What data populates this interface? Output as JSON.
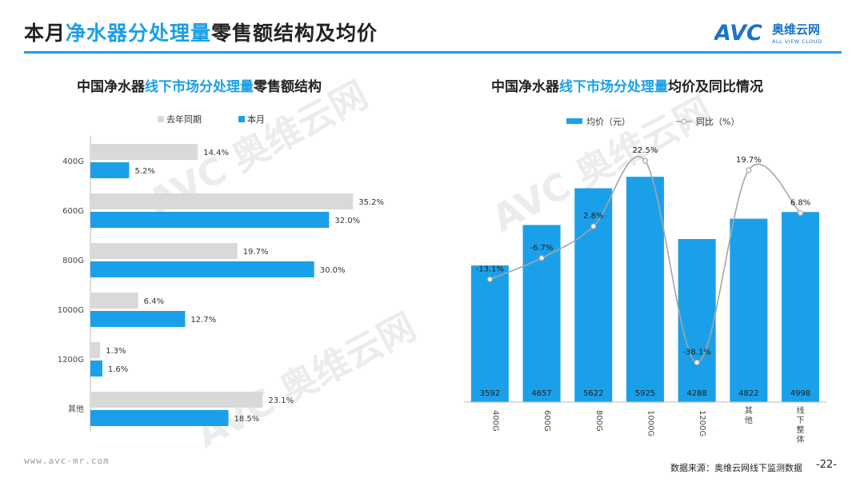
{
  "header": {
    "title_pre": "本月",
    "title_hl": "净水器分处理量",
    "title_post": "零售额结构及均价",
    "logo_text": "AVC",
    "logo_cn": "奥维云网",
    "logo_en": "ALL VIEW CLOUD"
  },
  "left_title": {
    "pre": "中国净水器",
    "hl": "线下市场分处理量",
    "post": "零售额结构"
  },
  "right_title": {
    "pre": "中国净水器",
    "hl": "线下市场分处理量",
    "post": "均价及同比情况"
  },
  "footer": {
    "url": "www.avc-mr.com",
    "source": "数据来源：奥维云网线下监测数据",
    "page": "-22-"
  },
  "watermark": {
    "cn": "奥维云网",
    "en": "ALL VIEW CLOUD",
    "logo": "AVC"
  },
  "colors": {
    "blue": "#1aa0e8",
    "gray": "#d9d9d9",
    "line": "#a6a6a6"
  },
  "chart_data": [
    {
      "type": "bar",
      "orientation": "horizontal",
      "title": "中国净水器线下市场分处理量零售额结构",
      "categories": [
        "400G",
        "600G",
        "800G",
        "1000G",
        "1200G",
        "其他"
      ],
      "series": [
        {
          "name": "去年同期",
          "values": [
            14.4,
            35.2,
            19.7,
            6.4,
            1.3,
            23.1
          ],
          "labels": [
            "14.4%",
            "35.2%",
            "19.7%",
            "6.4%",
            "1.3%",
            "23.1%"
          ]
        },
        {
          "name": "本月",
          "values": [
            5.2,
            32.0,
            30.0,
            12.7,
            1.6,
            18.5
          ],
          "labels": [
            "5.2%",
            "32.0%",
            "30.0%",
            "12.7%",
            "1.6%",
            "18.5%"
          ]
        }
      ],
      "xlim": [
        0,
        40
      ],
      "legend": "top"
    },
    {
      "type": "bar",
      "title": "中国净水器线下市场分处理量均价及同比情况",
      "categories": [
        "400G",
        "600G",
        "800G",
        "1000G",
        "1200G",
        "其他",
        "线下整体"
      ],
      "series": [
        {
          "name": "均价（元）",
          "type": "bar",
          "values": [
            3592,
            4657,
            5622,
            5925,
            4288,
            4822,
            4998
          ]
        },
        {
          "name": "同比（%）",
          "type": "line",
          "values": [
            -13.1,
            -6.7,
            2.8,
            22.5,
            -38.1,
            19.7,
            6.8
          ],
          "labels": [
            "-13.1%",
            "-6.7%",
            "2.8%",
            "22.5%",
            "-38.1%",
            "19.7%",
            "6.8%"
          ]
        }
      ],
      "ylim": [
        0,
        7000
      ],
      "y2lim": [
        -50,
        30
      ],
      "legend": "top"
    }
  ]
}
